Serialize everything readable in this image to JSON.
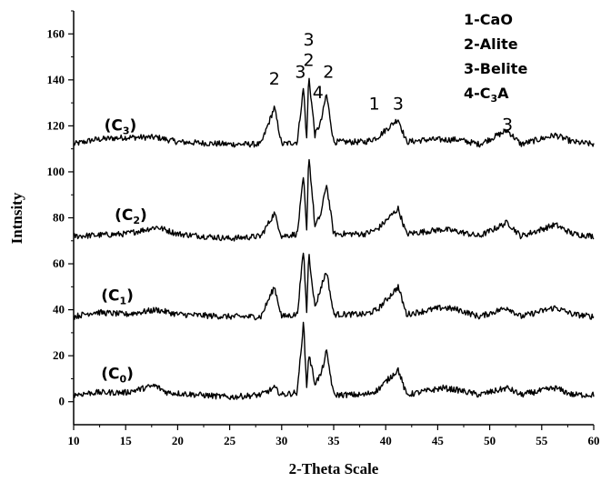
{
  "chart_data": {
    "type": "line",
    "xlabel": "2-Theta Scale",
    "ylabel": "Intnsity",
    "xlim": [
      10,
      60
    ],
    "ylim": [
      -10,
      170
    ],
    "xticks": [
      10,
      15,
      20,
      25,
      30,
      35,
      40,
      45,
      50,
      55,
      60
    ],
    "yticks": [
      0,
      20,
      40,
      60,
      80,
      100,
      120,
      140,
      160
    ],
    "legend": {
      "position": "top-right",
      "entries": [
        {
          "num": "1-",
          "text": "CaO"
        },
        {
          "num": "2-",
          "text": "Alite"
        },
        {
          "num": "3-",
          "text": "Belite"
        },
        {
          "num": "4-",
          "text": "C",
          "sub": "3",
          "tail": "A"
        }
      ]
    },
    "peaks": [
      {
        "x": 29.3,
        "baseline": 112,
        "height": 16
      },
      {
        "x": 32.1,
        "baseline": 112,
        "height": 25
      },
      {
        "x": 32.6,
        "baseline": 112,
        "height": 30
      },
      {
        "x": 33.8,
        "baseline": 112,
        "height": 10
      },
      {
        "x": 34.3,
        "baseline": 112,
        "height": 22
      },
      {
        "x": 41.2,
        "baseline": 112,
        "height": 11
      },
      {
        "x": 51.7,
        "baseline": 112,
        "height": 6
      }
    ],
    "series": [
      {
        "name": "C3",
        "label_main": "(C",
        "label_sub": "3",
        "baseline": 112,
        "points": [
          [
            10,
            112
          ],
          [
            12,
            114
          ],
          [
            15,
            115
          ],
          [
            18,
            115
          ],
          [
            20,
            113
          ],
          [
            25,
            112
          ],
          [
            28,
            112
          ],
          [
            29.3,
            128
          ],
          [
            30,
            112
          ],
          [
            31.5,
            113
          ],
          [
            32.1,
            137
          ],
          [
            32.4,
            114
          ],
          [
            32.6,
            142
          ],
          [
            33.2,
            116
          ],
          [
            33.8,
            122
          ],
          [
            34.3,
            134
          ],
          [
            35,
            113
          ],
          [
            38,
            113
          ],
          [
            39.2,
            115
          ],
          [
            41.2,
            123
          ],
          [
            42,
            113
          ],
          [
            44,
            114
          ],
          [
            47,
            114
          ],
          [
            49,
            112
          ],
          [
            51.7,
            118
          ],
          [
            53,
            112
          ],
          [
            56.3,
            116
          ],
          [
            58,
            113
          ],
          [
            60,
            112
          ]
        ]
      },
      {
        "name": "C2",
        "label_main": "(C",
        "label_sub": "2",
        "baseline": 72,
        "points": [
          [
            10,
            72
          ],
          [
            15,
            73
          ],
          [
            18,
            76
          ],
          [
            20,
            73
          ],
          [
            25,
            71
          ],
          [
            28,
            72
          ],
          [
            29.3,
            82
          ],
          [
            30,
            72
          ],
          [
            31.5,
            73
          ],
          [
            32.1,
            98
          ],
          [
            32.4,
            74
          ],
          [
            32.6,
            108
          ],
          [
            33.2,
            76
          ],
          [
            33.8,
            82
          ],
          [
            34.3,
            95
          ],
          [
            35,
            73
          ],
          [
            38,
            73
          ],
          [
            39.2,
            75
          ],
          [
            41.2,
            84
          ],
          [
            42,
            73
          ],
          [
            45.5,
            75
          ],
          [
            47,
            74
          ],
          [
            49,
            72
          ],
          [
            51.7,
            78
          ],
          [
            53,
            72
          ],
          [
            56.3,
            77
          ],
          [
            58,
            73
          ],
          [
            60,
            72
          ]
        ]
      },
      {
        "name": "C1",
        "label_main": "(C",
        "label_sub": "1",
        "baseline": 37,
        "points": [
          [
            10,
            37
          ],
          [
            12,
            39
          ],
          [
            15,
            38
          ],
          [
            18,
            40
          ],
          [
            20,
            38
          ],
          [
            25,
            37
          ],
          [
            28,
            37
          ],
          [
            29.3,
            50
          ],
          [
            30,
            37
          ],
          [
            31.5,
            38
          ],
          [
            32.1,
            66
          ],
          [
            32.4,
            39
          ],
          [
            32.6,
            65
          ],
          [
            33.2,
            41
          ],
          [
            33.8,
            50
          ],
          [
            34.3,
            57
          ],
          [
            35,
            38
          ],
          [
            38,
            38
          ],
          [
            39.2,
            40
          ],
          [
            41.2,
            50
          ],
          [
            42,
            38
          ],
          [
            45.5,
            41
          ],
          [
            47,
            40
          ],
          [
            49,
            37
          ],
          [
            51.7,
            41
          ],
          [
            53,
            37
          ],
          [
            56.3,
            41
          ],
          [
            58,
            38
          ],
          [
            60,
            37
          ]
        ]
      },
      {
        "name": "C0",
        "label_main": "(C",
        "label_sub": "0",
        "baseline": 3,
        "points": [
          [
            10,
            3
          ],
          [
            12,
            4
          ],
          [
            15,
            4
          ],
          [
            17.8,
            7
          ],
          [
            19,
            4
          ],
          [
            22,
            3
          ],
          [
            25,
            2
          ],
          [
            28,
            3
          ],
          [
            29.3,
            6
          ],
          [
            30,
            3
          ],
          [
            31.5,
            4
          ],
          [
            32.1,
            35
          ],
          [
            32.4,
            6
          ],
          [
            32.6,
            21
          ],
          [
            33.2,
            8
          ],
          [
            33.8,
            12
          ],
          [
            34.3,
            22
          ],
          [
            35,
            3
          ],
          [
            38,
            3
          ],
          [
            39.2,
            5
          ],
          [
            41.2,
            14
          ],
          [
            42,
            3
          ],
          [
            45.5,
            6
          ],
          [
            47,
            5
          ],
          [
            49,
            3
          ],
          [
            51.7,
            6
          ],
          [
            53,
            3
          ],
          [
            56.3,
            6
          ],
          [
            58,
            3
          ],
          [
            60,
            3
          ]
        ]
      }
    ],
    "peak_labels": [
      {
        "text": "3",
        "x": 32.6,
        "y": 155
      },
      {
        "text": "2",
        "x": 32.6,
        "y": 146
      },
      {
        "text": "2",
        "x": 29.3,
        "y": 138
      },
      {
        "text": "3",
        "x": 31.8,
        "y": 141
      },
      {
        "text": "2",
        "x": 34.5,
        "y": 141
      },
      {
        "text": "4",
        "x": 33.5,
        "y": 132
      },
      {
        "text": "1",
        "x": 38.9,
        "y": 127
      },
      {
        "text": "3",
        "x": 41.2,
        "y": 127
      },
      {
        "text": "3",
        "x": 51.7,
        "y": 118
      }
    ]
  }
}
